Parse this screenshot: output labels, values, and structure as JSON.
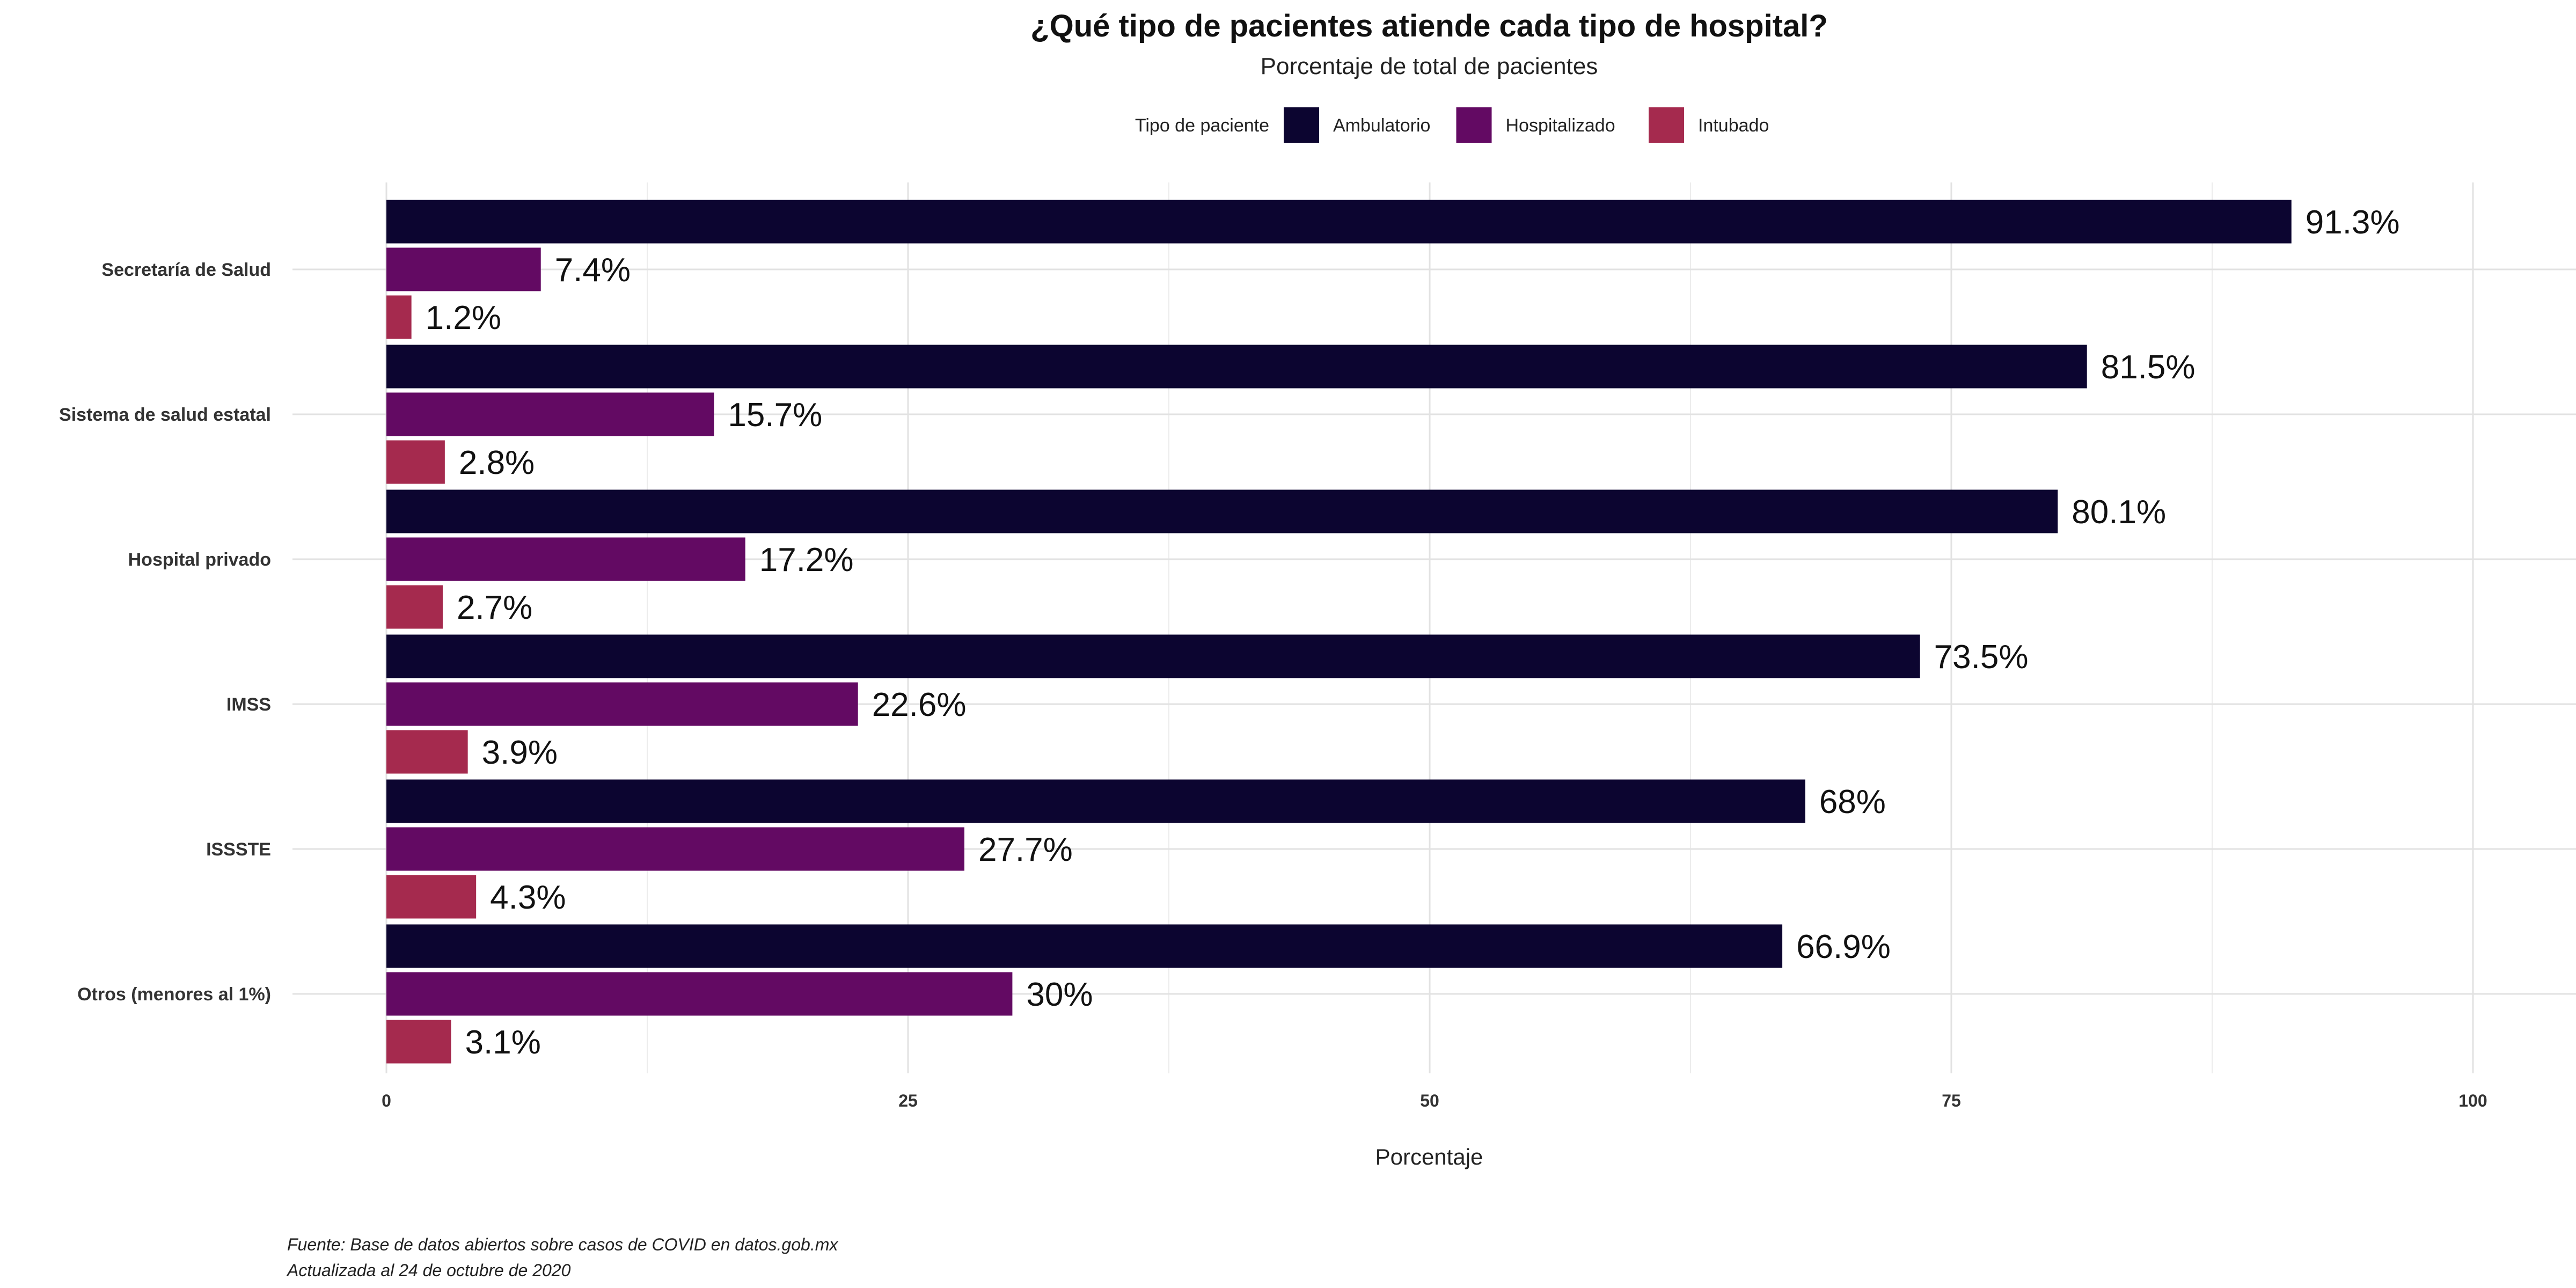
{
  "chart_data": {
    "type": "bar",
    "orientation": "horizontal",
    "title": "¿Qué tipo de pacientes atiende cada tipo de hospital?",
    "subtitle": "Porcentaje de total de pacientes",
    "legend_title": "Tipo de paciente",
    "legend_position": "top",
    "xlabel": "Porcentaje",
    "ylabel": "",
    "xlim": [
      0,
      100
    ],
    "x_ticks": [
      0,
      25,
      50,
      75,
      100
    ],
    "grid": true,
    "categories": [
      "Secretaría de Salud",
      "Sistema de salud estatal",
      "Hospital privado",
      "IMSS",
      "ISSSTE",
      "Otros (menores al 1%)"
    ],
    "series": [
      {
        "name": "Ambulatorio",
        "color": "#0c0530",
        "values": [
          91.3,
          81.5,
          80.1,
          73.5,
          68,
          66.9
        ],
        "labels": [
          "91.3%",
          "81.5%",
          "80.1%",
          "73.5%",
          "68%",
          "66.9%"
        ]
      },
      {
        "name": "Hospitalizado",
        "color": "#630a63",
        "values": [
          7.4,
          15.7,
          17.2,
          22.6,
          27.7,
          30
        ],
        "labels": [
          "7.4%",
          "15.7%",
          "17.2%",
          "22.6%",
          "27.7%",
          "30%"
        ]
      },
      {
        "name": "Intubado",
        "color": "#a52a4e",
        "values": [
          1.2,
          2.8,
          2.7,
          3.9,
          4.3,
          3.1
        ],
        "labels": [
          "1.2%",
          "2.8%",
          "2.7%",
          "3.9%",
          "4.3%",
          "3.1%"
        ]
      }
    ],
    "caption": [
      "Fuente: Base de datos abiertos sobre casos de COVID en datos.gob.mx",
      "Actualizada al 24 de octubre de 2020"
    ]
  }
}
